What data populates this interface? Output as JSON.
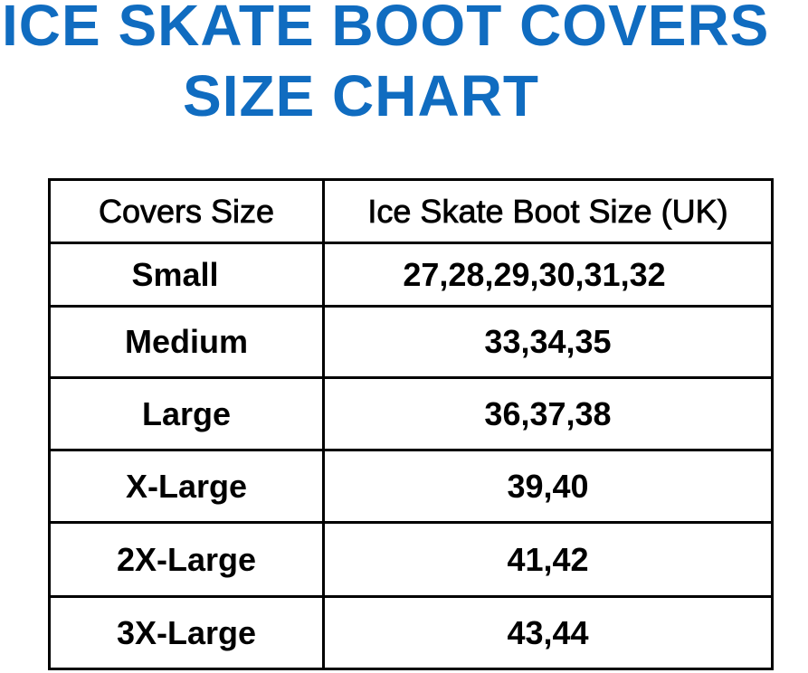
{
  "title": {
    "line1": "ICE SKATE BOOT COVERS",
    "line2": "SIZE CHART",
    "color": "#106cc0"
  },
  "table": {
    "headers": [
      "Covers Size",
      "Ice Skate Boot Size (UK)"
    ],
    "rows": [
      [
        "Small",
        "27,28,29,30,31,32"
      ],
      [
        "Medium",
        "33,34,35"
      ],
      [
        "Large",
        "36,37,38"
      ],
      [
        "X-Large",
        "39,40"
      ],
      [
        "2X-Large",
        "41,42"
      ],
      [
        "3X-Large",
        "43,44"
      ]
    ]
  }
}
